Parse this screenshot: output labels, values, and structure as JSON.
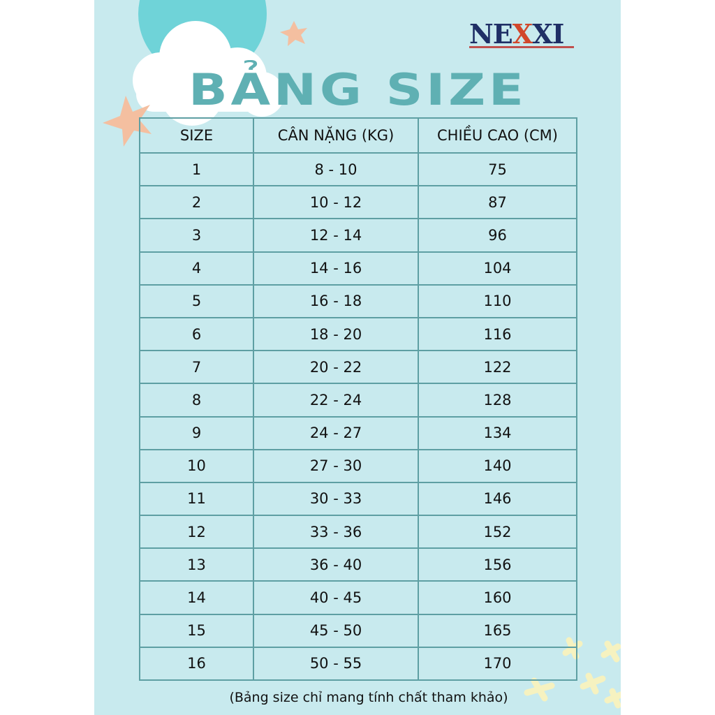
{
  "logo": {
    "text_a": "NE",
    "text_x": "X",
    "text_b": "XI"
  },
  "title": "BẢNG SIZE",
  "table": {
    "headers": [
      "SIZE",
      "CÂN NẶNG (KG)",
      "CHIỀU CAO (CM)"
    ],
    "rows": [
      [
        "1",
        "8 - 10",
        "75"
      ],
      [
        "2",
        "10 - 12",
        "87"
      ],
      [
        "3",
        "12 - 14",
        "96"
      ],
      [
        "4",
        "14 - 16",
        "104"
      ],
      [
        "5",
        "16 - 18",
        "110"
      ],
      [
        "6",
        "18 - 20",
        "116"
      ],
      [
        "7",
        "20 - 22",
        "122"
      ],
      [
        "8",
        "22 - 24",
        "128"
      ],
      [
        "9",
        "24 - 27",
        "134"
      ],
      [
        "10",
        "27 - 30",
        "140"
      ],
      [
        "11",
        "30 - 33",
        "146"
      ],
      [
        "12",
        "33 - 36",
        "152"
      ],
      [
        "13",
        "36 - 40",
        "156"
      ],
      [
        "14",
        "40 - 45",
        "160"
      ],
      [
        "15",
        "45 - 50",
        "165"
      ],
      [
        "16",
        "50 - 55",
        "170"
      ]
    ]
  },
  "note": "(Bảng size chỉ mang tính chất tham khảo)",
  "colors": {
    "background": "#c8eaee",
    "title": "#5fb0b3",
    "border": "#5e9fa3",
    "star": "#f4bfa0",
    "cloud": "#ffffff",
    "moon": "#6fd3d8",
    "logo_blue": "#1f2f66",
    "logo_red": "#d2472b"
  }
}
